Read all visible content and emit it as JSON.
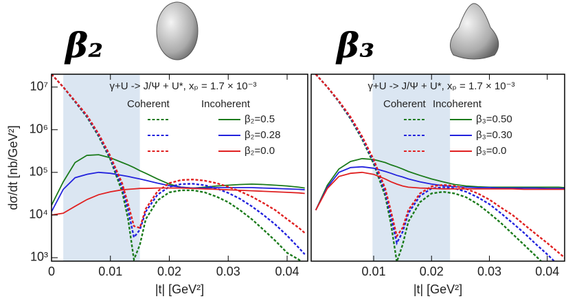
{
  "chart_data": [
    {
      "type": "line",
      "panel_label": "β₂",
      "annotation": "γ+U -> J/Ψ + U*, xₚ = 1.7 × 10⁻³",
      "xlabel": "|t| [GeV²]",
      "ylabel": "dσ/dt [nb/GeV²]",
      "log_y": true,
      "legend_columns": [
        "Coherent",
        "Incoherent"
      ],
      "shaded_region": [
        0.002,
        0.015
      ],
      "shade_color": "#dbe6f2",
      "xlim": [
        0,
        0.0435
      ],
      "xticks": [
        0,
        0.01,
        0.02,
        0.03,
        0.04
      ],
      "ylim": [
        830,
        20000000
      ],
      "yticks": [
        {
          "value": 1000,
          "label": "10³"
        },
        {
          "value": 10000,
          "label": "10⁴"
        },
        {
          "value": 100000,
          "label": "10⁵"
        },
        {
          "value": 1000000,
          "label": "10⁶"
        },
        {
          "value": 10000000,
          "label": "10⁷"
        }
      ],
      "x": [
        0,
        0.002,
        0.004,
        0.006,
        0.008,
        0.01,
        0.012,
        0.013,
        0.014,
        0.015,
        0.016,
        0.018,
        0.02,
        0.022,
        0.024,
        0.026,
        0.028,
        0.03,
        0.032,
        0.034,
        0.036,
        0.038,
        0.04,
        0.042,
        0.043
      ],
      "series": [
        {
          "name": "β₂=0.5",
          "color": "#1a7a1a",
          "coherent": [
            20000000,
            10000000,
            4500000,
            2000000,
            700000,
            200000,
            35000,
            8000,
            900,
            2000,
            8000,
            22000,
            34000,
            38000,
            38000,
            34000,
            27000,
            20000,
            13000,
            8000,
            4500,
            2500,
            1300,
            900,
            700
          ],
          "incoherent": [
            17000,
            60000,
            170000,
            250000,
            260000,
            220000,
            170000,
            150000,
            130000,
            110000,
            95000,
            70000,
            53000,
            45000,
            43000,
            45000,
            48000,
            50000,
            52000,
            53000,
            52000,
            50000,
            48000,
            45000,
            43000
          ]
        },
        {
          "name": "β₂=0.28",
          "color": "#2222dd",
          "coherent": [
            20000000,
            10000000,
            4600000,
            2100000,
            750000,
            220000,
            45000,
            13000,
            3000,
            4500,
            12000,
            30000,
            46000,
            53000,
            54000,
            50000,
            42000,
            33000,
            24000,
            16000,
            10000,
            6000,
            3300,
            1700,
            1200
          ],
          "incoherent": [
            12000,
            40000,
            75000,
            90000,
            100000,
            95000,
            85000,
            80000,
            75000,
            70000,
            65000,
            56000,
            49000,
            45000,
            43000,
            43000,
            44000,
            44000,
            44000,
            44000,
            43000,
            42000,
            41000,
            40000,
            39000
          ]
        },
        {
          "name": "β₂=0.0",
          "color": "#e02020",
          "coherent": [
            20000000,
            10000000,
            4700000,
            2200000,
            800000,
            240000,
            55000,
            18000,
            5500,
            5000,
            14000,
            36000,
            56000,
            66000,
            68000,
            64000,
            56000,
            46000,
            36000,
            27000,
            19000,
            13000,
            8000,
            5000,
            3800
          ],
          "incoherent": [
            10000,
            11000,
            16000,
            23000,
            30000,
            35000,
            39000,
            40000,
            41000,
            42000,
            42000,
            43000,
            43000,
            43000,
            42000,
            41000,
            40000,
            39000,
            38000,
            37000,
            36000,
            35000,
            34000,
            33000,
            32000
          ]
        }
      ]
    },
    {
      "type": "line",
      "panel_label": "β₃",
      "annotation": "γ+U -> J/Ψ + U*, xₚ = 1.7 × 10⁻³",
      "xlabel": "|t| [GeV²]",
      "log_y": true,
      "legend_columns": [
        "Coherent",
        "Incoherent"
      ],
      "shaded_region": [
        0.0098,
        0.0232
      ],
      "shade_color": "#dbe6f2",
      "xlim": [
        -0.0008,
        0.043
      ],
      "xticks": [
        0.01,
        0.02,
        0.03,
        0.04
      ],
      "ylim": [
        830,
        20000000
      ],
      "x": [
        0,
        0.002,
        0.004,
        0.006,
        0.008,
        0.01,
        0.012,
        0.013,
        0.014,
        0.015,
        0.016,
        0.018,
        0.02,
        0.022,
        0.024,
        0.026,
        0.028,
        0.03,
        0.032,
        0.034,
        0.036,
        0.038,
        0.04,
        0.042,
        0.043
      ],
      "series": [
        {
          "name": "β₃=0.50",
          "color": "#1a7a1a",
          "coherent": [
            20000000,
            10000000,
            4500000,
            1800000,
            600000,
            160000,
            28000,
            6000,
            800,
            2000,
            7000,
            20000,
            32000,
            35000,
            32000,
            26000,
            18000,
            11000,
            6500,
            3600,
            2000,
            1100,
            600,
            300,
            200
          ],
          "incoherent": [
            13000,
            50000,
            120000,
            180000,
            210000,
            200000,
            170000,
            150000,
            135000,
            120000,
            105000,
            85000,
            70000,
            60000,
            52000,
            48000,
            46000,
            45000,
            45000,
            45000,
            45000,
            45000,
            45000,
            45000,
            44000
          ]
        },
        {
          "name": "β₃=0.30",
          "color": "#2222dd",
          "coherent": [
            20000000,
            10000000,
            4600000,
            1900000,
            650000,
            180000,
            35000,
            9000,
            2200,
            4000,
            11000,
            28000,
            42000,
            45000,
            42000,
            35000,
            26000,
            18000,
            11000,
            6500,
            3800,
            2100,
            1200,
            650,
            480
          ],
          "incoherent": [
            13000,
            45000,
            100000,
            130000,
            135000,
            125000,
            105000,
            95000,
            85000,
            78000,
            70000,
            60000,
            53000,
            49000,
            46000,
            45000,
            44000,
            44000,
            43000,
            43000,
            43000,
            43000,
            42000,
            42000,
            42000
          ]
        },
        {
          "name": "β₃=0.0",
          "color": "#e02020",
          "coherent": [
            20000000,
            10000000,
            4700000,
            2000000,
            700000,
            200000,
            42000,
            12000,
            3200,
            5000,
            13000,
            32000,
            47000,
            51000,
            48000,
            41000,
            32000,
            23000,
            15000,
            10000,
            6000,
            3600,
            2200,
            1300,
            1000
          ],
          "incoherent": [
            13000,
            42000,
            80000,
            95000,
            100000,
            90000,
            70000,
            60000,
            53000,
            48000,
            45000,
            43000,
            42000,
            41000,
            41000,
            41000,
            41000,
            41000,
            41000,
            41000,
            40000,
            40000,
            40000,
            40000,
            40000
          ]
        }
      ]
    }
  ]
}
